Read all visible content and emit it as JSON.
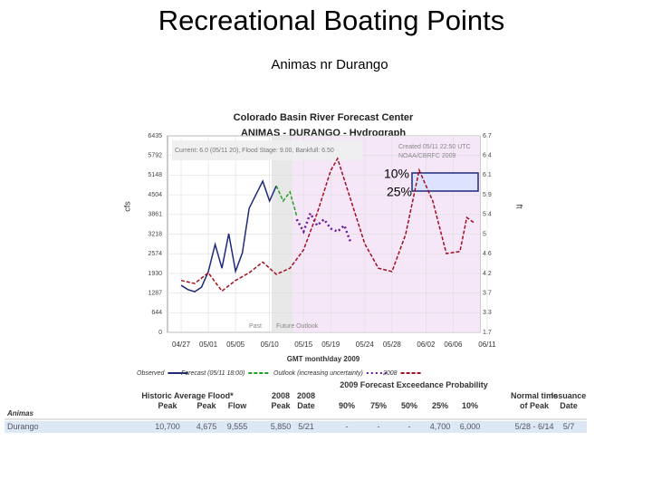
{
  "slide": {
    "title": "Recreational Boating Points",
    "subtitle": "Animas nr Durango"
  },
  "chart_data": {
    "type": "line",
    "title": "Colorado Basin River Forecast Center",
    "subtitle": "ANIMAS - DURANGO - Hydrograph",
    "xlabel": "GMT month/day 2009",
    "ylabel": "cfs",
    "y2label": "ft",
    "annotations": [
      "Current: 6.0 (05/11 20), Flood Stage: 9.00, Bankfull: 6.50",
      "Created 05/11 22:50 UTC",
      "NOAA/CBRFC 2009",
      "Past",
      "Future Outlook",
      "10%",
      "25%"
    ],
    "xlim": [
      "04/25",
      "06/11"
    ],
    "xticks": [
      "04/27",
      "05/01",
      "05/05",
      "05/10",
      "05/15",
      "05/19",
      "05/24",
      "05/28",
      "06/02",
      "06/06",
      "06/11"
    ],
    "ylim": [
      0,
      6435
    ],
    "yticks": [
      6435,
      5792,
      5148,
      4504,
      3861,
      3218,
      2574,
      1930,
      1287,
      644,
      0
    ],
    "y2ticks": [
      6.7,
      6.4,
      6.1,
      5.9,
      5.4,
      5.0,
      4.6,
      4.2,
      3.7,
      3.3,
      1.7
    ],
    "series": [
      {
        "name": "Observed",
        "color": "#1f2a7a",
        "dash": "solid",
        "x": [
          "04/27",
          "04/28",
          "04/29",
          "04/30",
          "05/01",
          "05/02",
          "05/03",
          "05/04",
          "05/05",
          "05/06",
          "05/07",
          "05/08",
          "05/09",
          "05/10",
          "05/11"
        ],
        "values": [
          1540,
          1400,
          1330,
          1480,
          1990,
          2880,
          2100,
          3230,
          2000,
          2600,
          4060,
          4510,
          4950,
          4300,
          4800
        ]
      },
      {
        "name": "Forecast (05/11 18:00)",
        "color": "#22a022",
        "dash": "dashed",
        "x": [
          "05/11",
          "05/12",
          "05/13",
          "05/14"
        ],
        "values": [
          4800,
          4300,
          4600,
          3800
        ]
      },
      {
        "name": "Outlook (increasing uncertainty)",
        "color": "#6a1b9a",
        "dash": "dotted",
        "x": [
          "05/14",
          "05/15",
          "05/16",
          "05/17",
          "05/18",
          "05/19",
          "05/20",
          "05/21",
          "05/22"
        ],
        "values": [
          3700,
          3300,
          3900,
          3500,
          3700,
          3400,
          3300,
          3500,
          2900
        ]
      },
      {
        "name": "2008",
        "color": "#a01020",
        "dash": "dashed",
        "x": [
          "04/27",
          "04/29",
          "05/01",
          "05/03",
          "05/05",
          "05/07",
          "05/09",
          "05/11",
          "05/13",
          "05/15",
          "05/17",
          "05/19",
          "05/20",
          "05/22",
          "05/24",
          "05/26",
          "05/28",
          "05/30",
          "06/01",
          "06/03",
          "06/05",
          "06/07",
          "06/08",
          "06/09"
        ],
        "values": [
          1700,
          1600,
          1950,
          1350,
          1700,
          1950,
          2300,
          1900,
          2100,
          2700,
          3900,
          5300,
          5690,
          4300,
          2900,
          2100,
          1990,
          3200,
          5310,
          4300,
          2580,
          2650,
          3760,
          3600
        ]
      }
    ]
  },
  "table": {
    "header_top": [
      "Historic Average Flood*",
      "2008",
      "2008",
      "2009 Forecast Exceedance Probability",
      "Normal time",
      "Issuance"
    ],
    "header_bottom": [
      "Peak",
      "Peak",
      "Flow",
      "Peak",
      "Date",
      "90%",
      "75%",
      "50%",
      "25%",
      "10%",
      "of Peak",
      "Date"
    ],
    "section": "Animas",
    "row": [
      "Durango",
      "10,700",
      "4,675",
      "9,555",
      "5,850",
      "5/21",
      "-",
      "-",
      "-",
      "4,700",
      "6,000",
      "5/28 - 6/14",
      "5/7"
    ]
  }
}
